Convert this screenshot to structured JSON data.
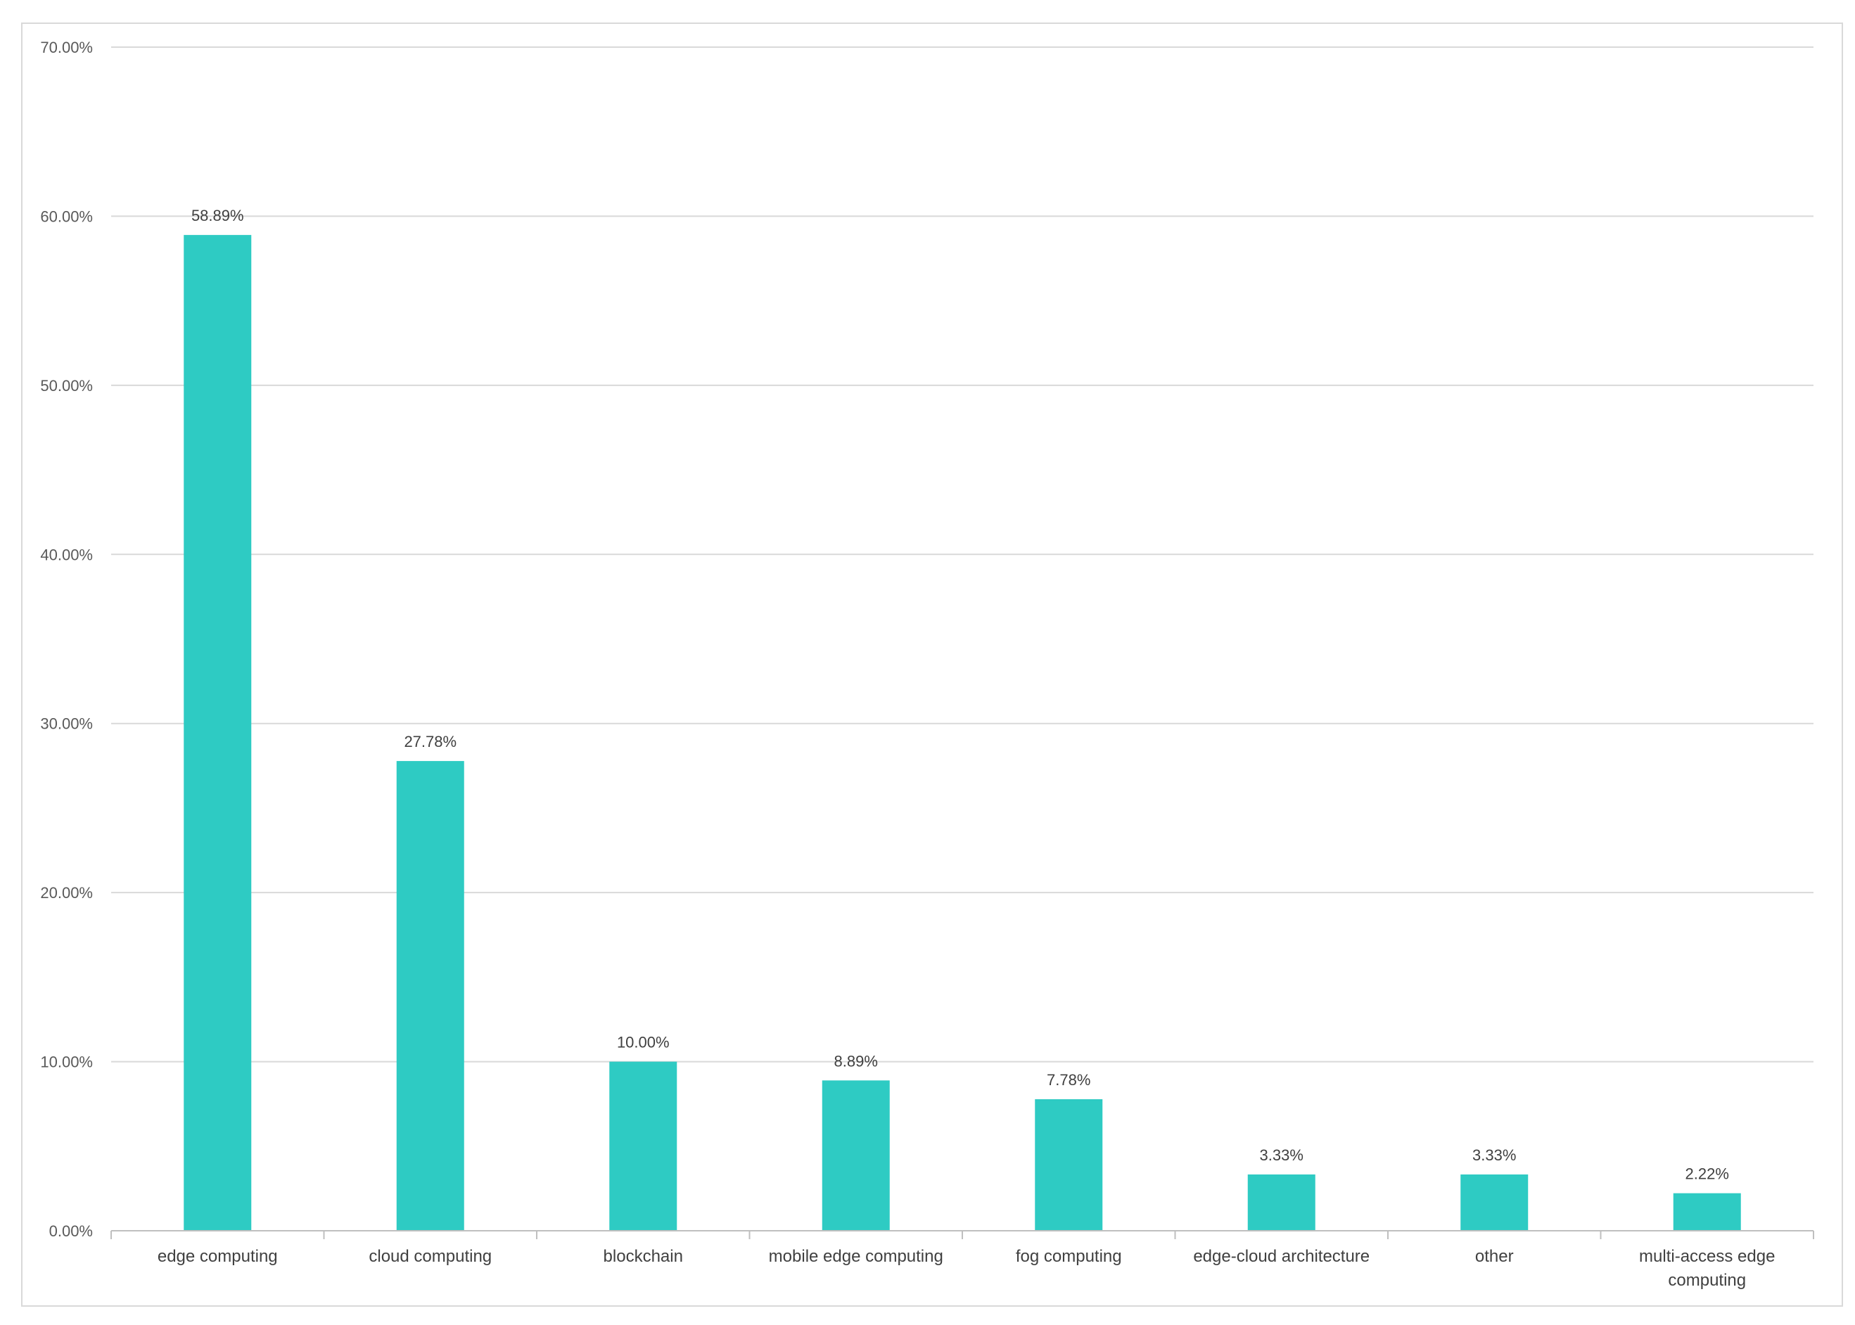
{
  "chart_data": {
    "type": "bar",
    "categories": [
      "edge computing",
      "cloud computing",
      "blockchain",
      "mobile edge computing",
      "fog computing",
      "edge-cloud architecture",
      "other",
      "multi-access edge computing"
    ],
    "category_lines": [
      [
        "edge computing"
      ],
      [
        "cloud computing"
      ],
      [
        "blockchain"
      ],
      [
        "mobile edge computing"
      ],
      [
        "fog computing"
      ],
      [
        "edge-cloud architecture"
      ],
      [
        "other"
      ],
      [
        "multi-access edge",
        "computing"
      ]
    ],
    "values": [
      58.89,
      27.78,
      10.0,
      8.89,
      7.78,
      3.33,
      3.33,
      2.22
    ],
    "data_labels": [
      "58.89%",
      "27.78%",
      "10.00%",
      "8.89%",
      "7.78%",
      "3.33%",
      "3.33%",
      "2.22%"
    ],
    "yticks": [
      0,
      10,
      20,
      30,
      40,
      50,
      60,
      70
    ],
    "ytick_labels": [
      "0.00%",
      "10.00%",
      "20.00%",
      "30.00%",
      "40.00%",
      "50.00%",
      "60.00%",
      "70.00%"
    ],
    "ylim": [
      0,
      70
    ],
    "title": "",
    "xlabel": "",
    "ylabel": "",
    "grid": true,
    "legend": "none",
    "colors": {
      "bar": "#2ecbc3",
      "grid": "#d9d9d9",
      "axis": "#bfbfbf"
    }
  }
}
